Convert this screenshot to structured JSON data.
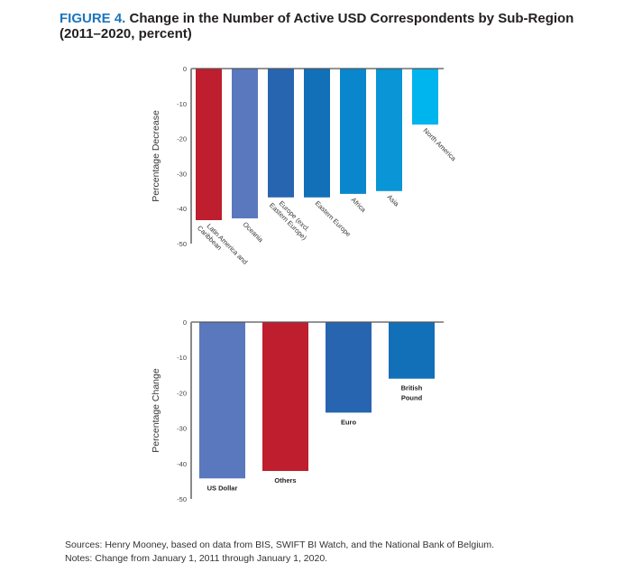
{
  "figure": {
    "label": "FIGURE 4.",
    "title": "Change in the Number of Active USD Correspondents by Sub-Region (2011–2020, percent)"
  },
  "footer": {
    "sources": "Sources: Henry Mooney, based on data from BIS, SWIFT BI Watch, and the National Bank of Belgium.",
    "notes": "Notes: Change from January 1, 2011 through January 1, 2020."
  },
  "chart_data": [
    {
      "type": "bar",
      "title": "",
      "xlabel": "",
      "ylabel": "Percentage Decrease",
      "ylim": [
        -50,
        0
      ],
      "yticks": [
        0,
        -10,
        -20,
        -30,
        -40,
        -50
      ],
      "categories": [
        "Latin America and Caribbean",
        "Oceania",
        "Europe (excl. Eastern Europe)",
        "Eastern Europe",
        "Africa",
        "Asia",
        "North America"
      ],
      "category_lines": [
        [
          "Latin America and",
          "Caribbean"
        ],
        [
          "Oceania"
        ],
        [
          "Europe (excl.",
          "Eastern Europe)"
        ],
        [
          "Eastern Europe"
        ],
        [
          "Africa"
        ],
        [
          "Asia"
        ],
        [
          "North America"
        ]
      ],
      "values": [
        -43.3,
        -42.8,
        -36.8,
        -36.8,
        -35.8,
        -35.0,
        -16.0
      ],
      "colors": [
        "#be1e2d",
        "#5a78be",
        "#2765b0",
        "#1170b8",
        "#0a87cc",
        "#0995d6",
        "#00b4ee"
      ],
      "label_style": "rotated",
      "grid": false
    },
    {
      "type": "bar",
      "title": "",
      "xlabel": "",
      "ylabel": "Percentage Change",
      "ylim": [
        -50,
        0
      ],
      "yticks": [
        0,
        -10,
        -20,
        -30,
        -40,
        -50
      ],
      "categories": [
        "US Dollar",
        "Others",
        "Euro",
        "British Pound"
      ],
      "category_lines": [
        [
          "US Dollar"
        ],
        [
          "Others"
        ],
        [
          "Euro"
        ],
        [
          "British",
          "Pound"
        ]
      ],
      "values": [
        -44.2,
        -42.1,
        -25.6,
        -16.0
      ],
      "colors": [
        "#5a78be",
        "#be1e2d",
        "#2765b0",
        "#1170b8"
      ],
      "label_style": "below-bar",
      "grid": false
    }
  ]
}
